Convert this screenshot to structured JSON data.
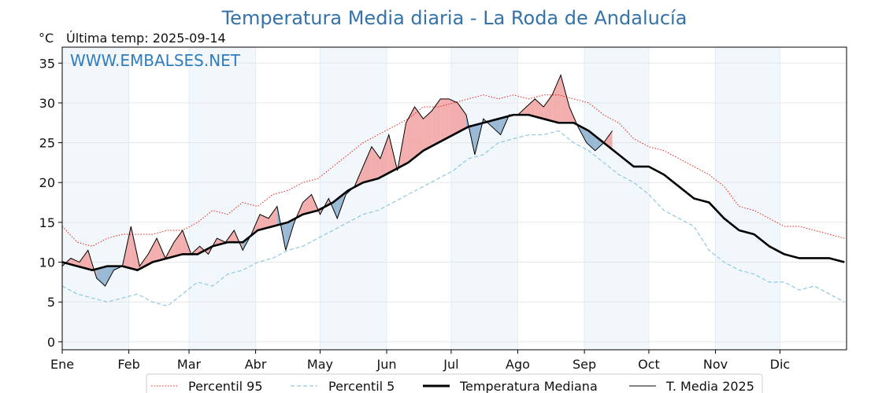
{
  "chart_data": {
    "type": "line",
    "title": "Temperatura Media diaria - La Roda de Andalucía",
    "unit_label": "°C",
    "last_temp_label": "Última temp: 2025-09-14",
    "watermark": "WWW.EMBALSES.NET",
    "ylim": [
      -1,
      37
    ],
    "yticks": [
      0,
      5,
      10,
      15,
      20,
      25,
      30,
      35
    ],
    "xlim": [
      0,
      365
    ],
    "months": [
      "Ene",
      "Feb",
      "Mar",
      "Abr",
      "May",
      "Jun",
      "Jul",
      "Ago",
      "Sep",
      "Oct",
      "Nov",
      "Dic"
    ],
    "month_starts": [
      0,
      31,
      59,
      90,
      120,
      151,
      181,
      212,
      243,
      273,
      304,
      334
    ],
    "grid": true,
    "legend_position": "bottom",
    "series": [
      {
        "name": "Percentil 95",
        "color": "#e8211a",
        "style": "dotted",
        "x": [
          0,
          7,
          14,
          21,
          28,
          35,
          42,
          49,
          56,
          63,
          70,
          77,
          84,
          91,
          98,
          105,
          112,
          119,
          126,
          133,
          140,
          147,
          154,
          161,
          168,
          175,
          182,
          189,
          196,
          203,
          210,
          217,
          224,
          231,
          238,
          245,
          252,
          259,
          266,
          273,
          280,
          287,
          294,
          301,
          308,
          315,
          322,
          329,
          336,
          343,
          350,
          357,
          364
        ],
        "values": [
          14.5,
          12.5,
          12,
          13,
          13.5,
          13.5,
          13.5,
          14,
          14,
          15,
          16.5,
          16,
          17.5,
          17,
          18.5,
          19,
          20,
          20.5,
          22,
          23.5,
          25,
          26,
          27,
          28,
          29.5,
          29.5,
          30,
          30.5,
          31,
          30.5,
          31,
          30.5,
          31,
          31,
          30.5,
          30,
          28.5,
          27.5,
          25.5,
          24.5,
          24,
          23,
          22,
          21,
          19.5,
          17,
          16.5,
          15.5,
          14.5,
          14.5,
          14,
          13.5,
          13
        ]
      },
      {
        "name": "Percentil 5",
        "color": "#8ec8dc",
        "style": "dashed",
        "x": [
          0,
          7,
          14,
          21,
          28,
          35,
          42,
          49,
          56,
          63,
          70,
          77,
          84,
          91,
          98,
          105,
          112,
          119,
          126,
          133,
          140,
          147,
          154,
          161,
          168,
          175,
          182,
          189,
          196,
          203,
          210,
          217,
          224,
          231,
          238,
          245,
          252,
          259,
          266,
          273,
          280,
          287,
          294,
          301,
          308,
          315,
          322,
          329,
          336,
          343,
          350,
          357,
          364
        ],
        "values": [
          7,
          6,
          5.5,
          5,
          5.5,
          6,
          5,
          4.5,
          6,
          7.5,
          7,
          8.5,
          9,
          10,
          10.5,
          11.5,
          12,
          13,
          14,
          15,
          16,
          16.5,
          17.5,
          18.5,
          19.5,
          20.5,
          21.5,
          23,
          23.5,
          25,
          25.5,
          26,
          26,
          26.5,
          25,
          24,
          22.5,
          21,
          20,
          18.5,
          16.5,
          15.5,
          14.5,
          11.5,
          10,
          9,
          8.5,
          7.5,
          7.5,
          6.5,
          7,
          6,
          5
        ]
      },
      {
        "name": "Temperatura Mediana",
        "color": "#000000",
        "style": "solid-thick",
        "x": [
          0,
          7,
          14,
          21,
          28,
          35,
          42,
          49,
          56,
          63,
          70,
          77,
          84,
          91,
          98,
          105,
          112,
          119,
          126,
          133,
          140,
          147,
          154,
          161,
          168,
          175,
          182,
          189,
          196,
          203,
          210,
          217,
          224,
          231,
          238,
          245,
          252,
          259,
          266,
          273,
          280,
          287,
          294,
          301,
          308,
          315,
          322,
          329,
          336,
          343,
          350,
          357,
          364
        ],
        "values": [
          10,
          9.5,
          9,
          9.5,
          9.5,
          9,
          10,
          10.5,
          11,
          11,
          12,
          12.5,
          12.5,
          14,
          14.5,
          15,
          16,
          16.5,
          17.5,
          19,
          20,
          20.5,
          21.5,
          22.5,
          24,
          25,
          26,
          27,
          27.5,
          28,
          28.5,
          28.5,
          28,
          27.5,
          27.5,
          26.5,
          25,
          23.5,
          22,
          22,
          21,
          19.5,
          18,
          17.5,
          15.5,
          14,
          13.5,
          12,
          11,
          10.5,
          10.5,
          10.5,
          10
        ]
      },
      {
        "name": "T. Media 2025",
        "color": "#000000",
        "style": "solid-thin",
        "x": [
          0,
          4,
          8,
          12,
          16,
          20,
          24,
          28,
          32,
          36,
          40,
          44,
          48,
          52,
          56,
          60,
          64,
          68,
          72,
          76,
          80,
          84,
          88,
          92,
          96,
          100,
          104,
          108,
          112,
          116,
          120,
          124,
          128,
          132,
          136,
          140,
          144,
          148,
          152,
          156,
          160,
          164,
          168,
          172,
          176,
          180,
          184,
          188,
          192,
          196,
          200,
          204,
          208,
          212,
          216,
          220,
          224,
          228,
          232,
          236,
          240,
          244,
          248,
          252,
          256
        ],
        "values": [
          9.5,
          10.5,
          10,
          11.5,
          8,
          7,
          9,
          9.5,
          14.5,
          9.5,
          11,
          13,
          10.5,
          12.5,
          14,
          11,
          12,
          11,
          13,
          12.5,
          14,
          11.5,
          13.5,
          16,
          15.5,
          17,
          11.5,
          15,
          17.5,
          18.5,
          16,
          18,
          15.5,
          18.5,
          19.5,
          22,
          24.5,
          23,
          26,
          21.5,
          27.5,
          29.5,
          28,
          29,
          30.5,
          30.5,
          30,
          28.5,
          23.5,
          28,
          27,
          26,
          28.5,
          28.5,
          29.5,
          30.5,
          29.5,
          31,
          33.5,
          29.5,
          27,
          25,
          24,
          25,
          26.5
        ]
      }
    ]
  }
}
